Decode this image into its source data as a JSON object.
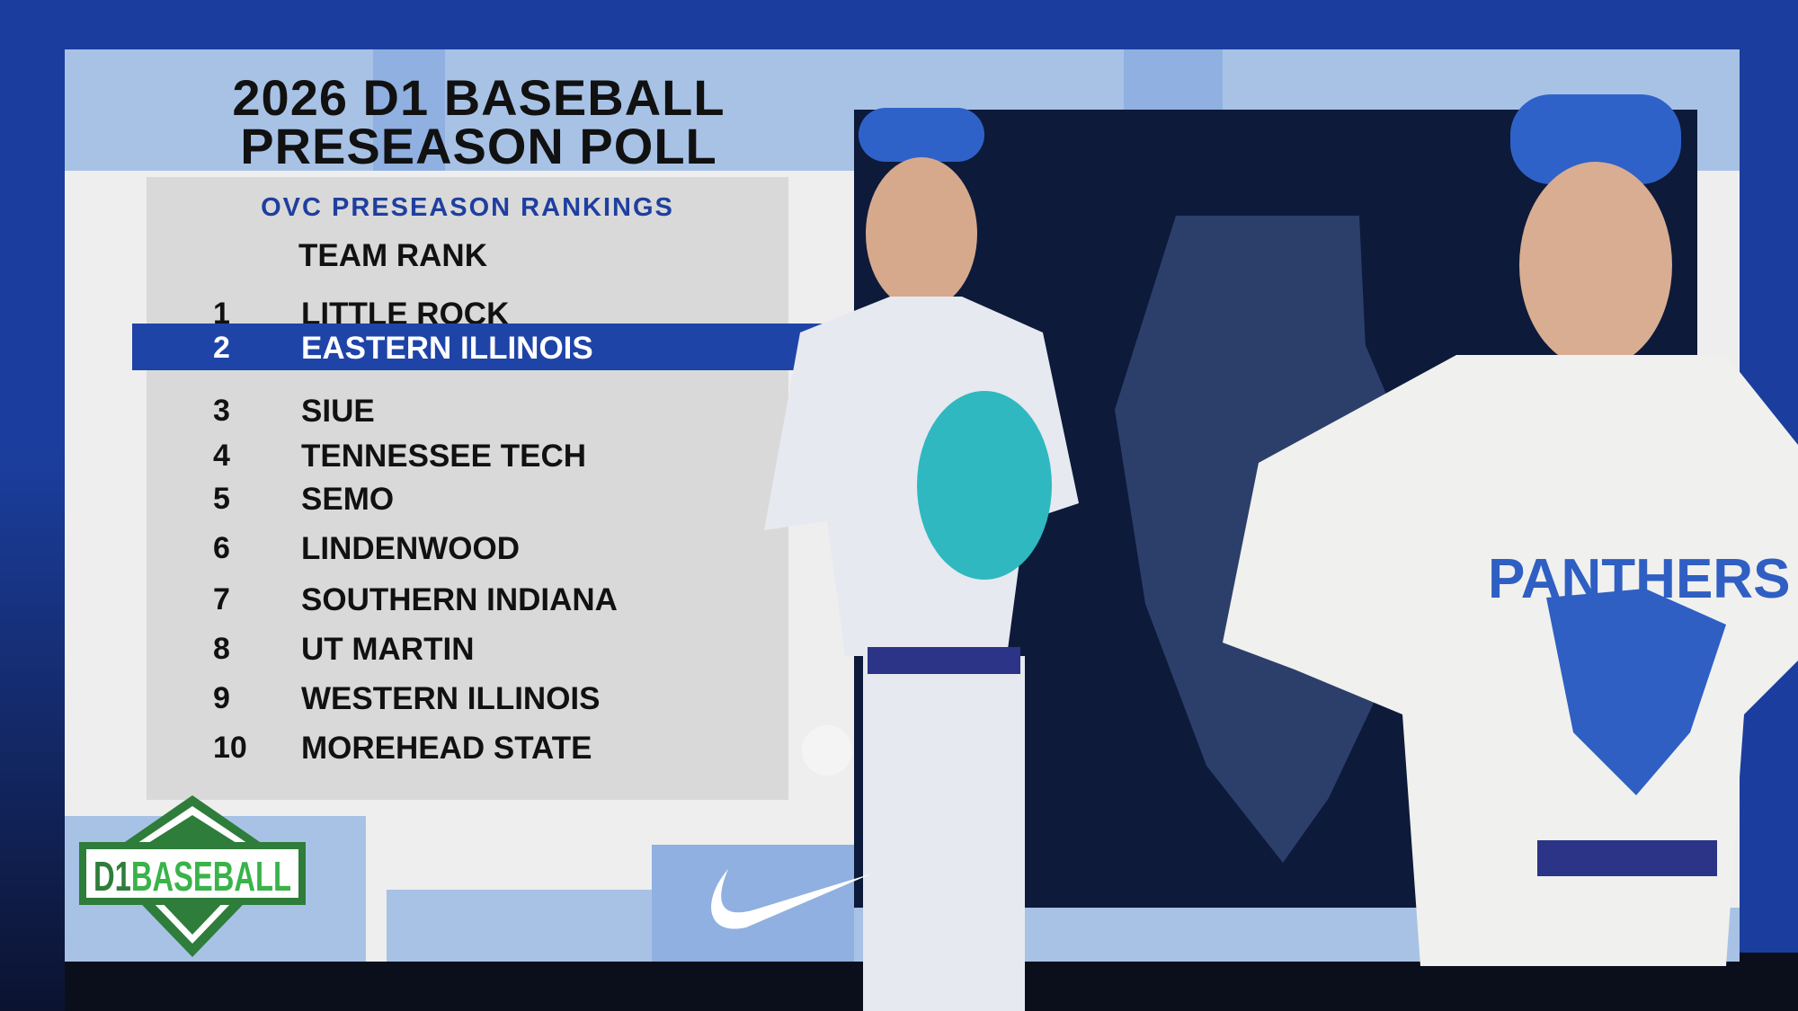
{
  "header": {
    "title_line1": "2026 D1 BASEBALL",
    "title_line2": "PRESEASON POLL"
  },
  "rankings": {
    "subtitle": "OVC PRESEASON RANKINGS",
    "column_header": "TEAM RANK",
    "highlight_color": "#1f44a8",
    "rows": [
      {
        "rank": "1",
        "team": "LITTLE ROCK"
      },
      {
        "rank": "2",
        "team": "EASTERN ILLINOIS",
        "highlighted": true
      },
      {
        "rank": "3",
        "team": "SIUE"
      },
      {
        "rank": "4",
        "team": "TENNESSEE TECH"
      },
      {
        "rank": "5",
        "team": "SEMO"
      },
      {
        "rank": "6",
        "team": "LINDENWOOD"
      },
      {
        "rank": "7",
        "team": "SOUTHERN INDIANA"
      },
      {
        "rank": "8",
        "team": "UT MARTIN"
      },
      {
        "rank": "9",
        "team": "WESTERN ILLINOIS"
      },
      {
        "rank": "10",
        "team": "MOREHEAD STATE"
      }
    ]
  },
  "logos": {
    "d1baseball": "D1BASEBALL",
    "jersey_text": "PANTHERS",
    "sponsor": "nike-swoosh"
  }
}
